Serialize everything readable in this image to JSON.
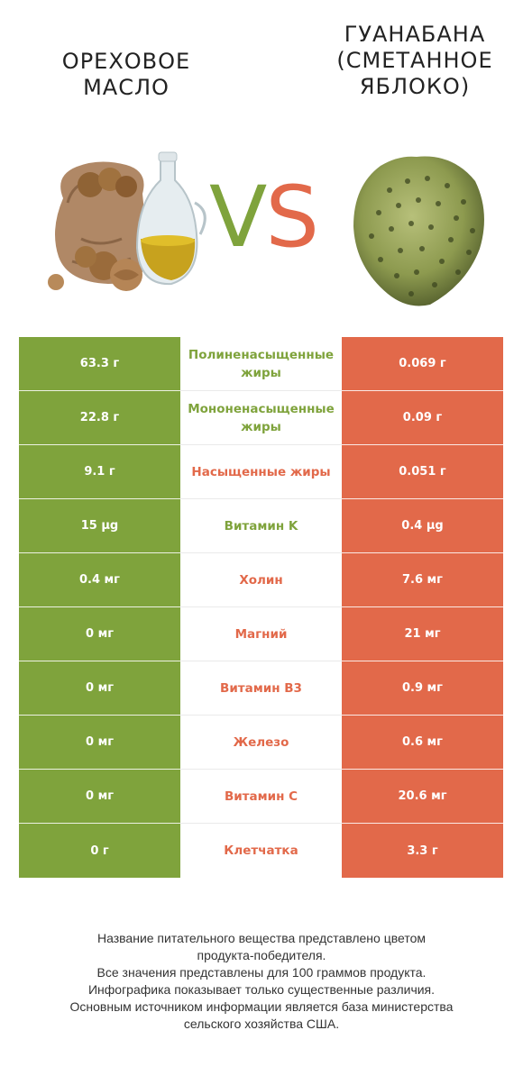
{
  "left_product": {
    "title": "ОРЕХОВОЕ МАСЛО",
    "color": "#7fa33c"
  },
  "right_product": {
    "title": "ГУАНАБАНА (СМЕТАННОЕ ЯБЛОКО)",
    "color": "#e2694a"
  },
  "vs": {
    "v": "V",
    "s": "S"
  },
  "rows": [
    {
      "nutrient": "Полиненасыщенные жиры",
      "left": "63.3 г",
      "right": "0.069 г",
      "winner": "left"
    },
    {
      "nutrient": "Мононенасыщенные жиры",
      "left": "22.8 г",
      "right": "0.09 г",
      "winner": "left"
    },
    {
      "nutrient": "Насыщенные жиры",
      "left": "9.1 г",
      "right": "0.051 г",
      "winner": "right"
    },
    {
      "nutrient": "Витамин K",
      "left": "15 µg",
      "right": "0.4 µg",
      "winner": "left"
    },
    {
      "nutrient": "Холин",
      "left": "0.4 мг",
      "right": "7.6 мг",
      "winner": "right"
    },
    {
      "nutrient": "Магний",
      "left": "0 мг",
      "right": "21 мг",
      "winner": "right"
    },
    {
      "nutrient": "Витамин B3",
      "left": "0 мг",
      "right": "0.9 мг",
      "winner": "right"
    },
    {
      "nutrient": "Железо",
      "left": "0 мг",
      "right": "0.6 мг",
      "winner": "right"
    },
    {
      "nutrient": "Витамин C",
      "left": "0 мг",
      "right": "20.6 мг",
      "winner": "right"
    },
    {
      "nutrient": "Клетчатка",
      "left": "0 г",
      "right": "3.3 г",
      "winner": "right"
    }
  ],
  "footer": {
    "line1": "Название питательного вещества представлено цветом",
    "line2": "продукта-победителя.",
    "line3": "Все значения представлены для 100 граммов продукта.",
    "line4": "Инфографика показывает только существенные различия.",
    "line5": "Основным источником информации является база министерства",
    "line6": "сельского хозяйства США."
  }
}
